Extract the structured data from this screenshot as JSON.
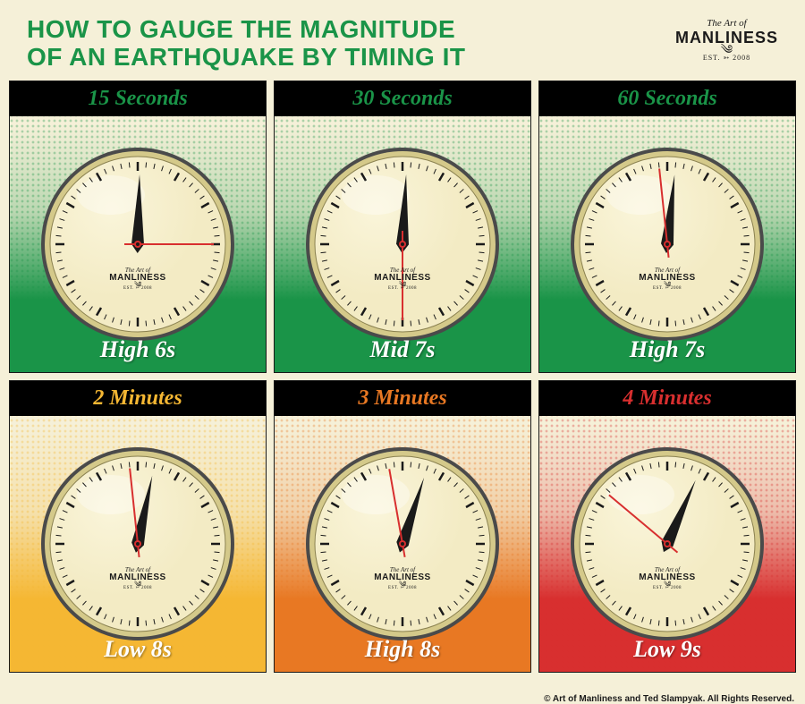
{
  "title_line1": "HOW TO GAUGE THE MAGNITUDE",
  "title_line2": "OF AN EARTHQUAKE BY TIMING IT",
  "title_color": "#1a9448",
  "logo": {
    "line1": "The Art of",
    "line2": "MANLINESS",
    "line3": "EST. ➳ 2008"
  },
  "copyright": "© Art of Manliness and Ted Slampyak. All Rights Reserved.",
  "clock_face_color": "#f3ebc4",
  "clock_rim_outer": "#4a4a4a",
  "clock_rim_inner": "#d4c98a",
  "minute_hand_color": "#1a1a1a",
  "second_hand_color": "#d82f2f",
  "minute_hand_angle": 0,
  "panels": [
    {
      "time_label": "15 Seconds",
      "label_color": "#1a9448",
      "magnitude": "High 6s",
      "second_angle": 90,
      "minute_angle": 1.5,
      "bg_top": "#f5f0d8",
      "bg_bottom": "#1a9448",
      "halftone_color": "#1a9448"
    },
    {
      "time_label": "30 Seconds",
      "label_color": "#1a9448",
      "magnitude": "Mid 7s",
      "second_angle": 180,
      "minute_angle": 3,
      "bg_top": "#f5f0d8",
      "bg_bottom": "#1a9448",
      "halftone_color": "#1a9448"
    },
    {
      "time_label": "60 Seconds",
      "label_color": "#1a9448",
      "magnitude": "High 7s",
      "second_angle": 354,
      "minute_angle": 6,
      "bg_top": "#f5f0d8",
      "bg_bottom": "#1a9448",
      "halftone_color": "#1a9448"
    },
    {
      "time_label": "2 Minutes",
      "label_color": "#f5b733",
      "magnitude": "Low 8s",
      "second_angle": 354,
      "minute_angle": 12,
      "bg_top": "#f5f0d8",
      "bg_bottom": "#f5b733",
      "halftone_color": "#f5b733"
    },
    {
      "time_label": "3 Minutes",
      "label_color": "#e87823",
      "magnitude": "High 8s",
      "second_angle": 350,
      "minute_angle": 18,
      "bg_top": "#f5f0d8",
      "bg_bottom": "#e87823",
      "halftone_color": "#e87823"
    },
    {
      "time_label": "4 Minutes",
      "label_color": "#d82f2f",
      "magnitude": "Low 9s",
      "second_angle": 310,
      "minute_angle": 24,
      "bg_top": "#f5f0d8",
      "bg_bottom": "#d82f2f",
      "halftone_color": "#d82f2f"
    }
  ]
}
